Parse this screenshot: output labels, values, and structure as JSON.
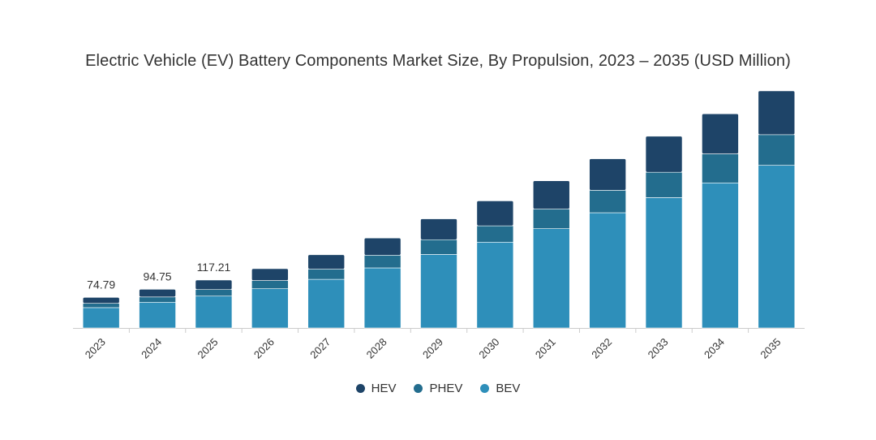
{
  "chart_data": {
    "type": "bar",
    "stacked": true,
    "title": "Electric Vehicle (EV) Battery Components Market Size, By Propulsion, 2023 – 2035 (USD Million)",
    "xlabel": "",
    "ylabel": "",
    "categories": [
      "2023",
      "2024",
      "2025",
      "2026",
      "2027",
      "2028",
      "2029",
      "2030",
      "2031",
      "2032",
      "2033",
      "2034",
      "2035"
    ],
    "series": [
      {
        "name": "BEV",
        "color": "#2e8fba",
        "values": [
          49.8,
          63.0,
          78.0,
          96.0,
          119.0,
          147.0,
          180.0,
          210.0,
          243.0,
          282.0,
          319.0,
          355.0,
          398.0
        ]
      },
      {
        "name": "PHEV",
        "color": "#236d8e",
        "values": [
          10.5,
          12.9,
          16.1,
          20.0,
          25.0,
          31.0,
          36.0,
          40.0,
          48.0,
          55.0,
          62.0,
          71.0,
          75.0
        ]
      },
      {
        "name": "HEV",
        "color": "#1e4468",
        "values": [
          14.49,
          18.85,
          23.11,
          29.0,
          35.0,
          42.0,
          51.0,
          61.0,
          69.0,
          77.0,
          88.0,
          98.0,
          107.0
        ]
      }
    ],
    "totals": [
      74.79,
      94.75,
      117.21,
      145.0,
      179.0,
      220.0,
      267.0,
      311.0,
      360.0,
      414.0,
      469.0,
      524.0,
      580.0
    ],
    "data_labels": [
      "74.79",
      "94.75",
      "117.21"
    ],
    "ylim": [
      0,
      580
    ],
    "grid": false,
    "legend": {
      "position": "bottom",
      "entries": [
        "HEV",
        "PHEV",
        "BEV"
      ]
    }
  }
}
